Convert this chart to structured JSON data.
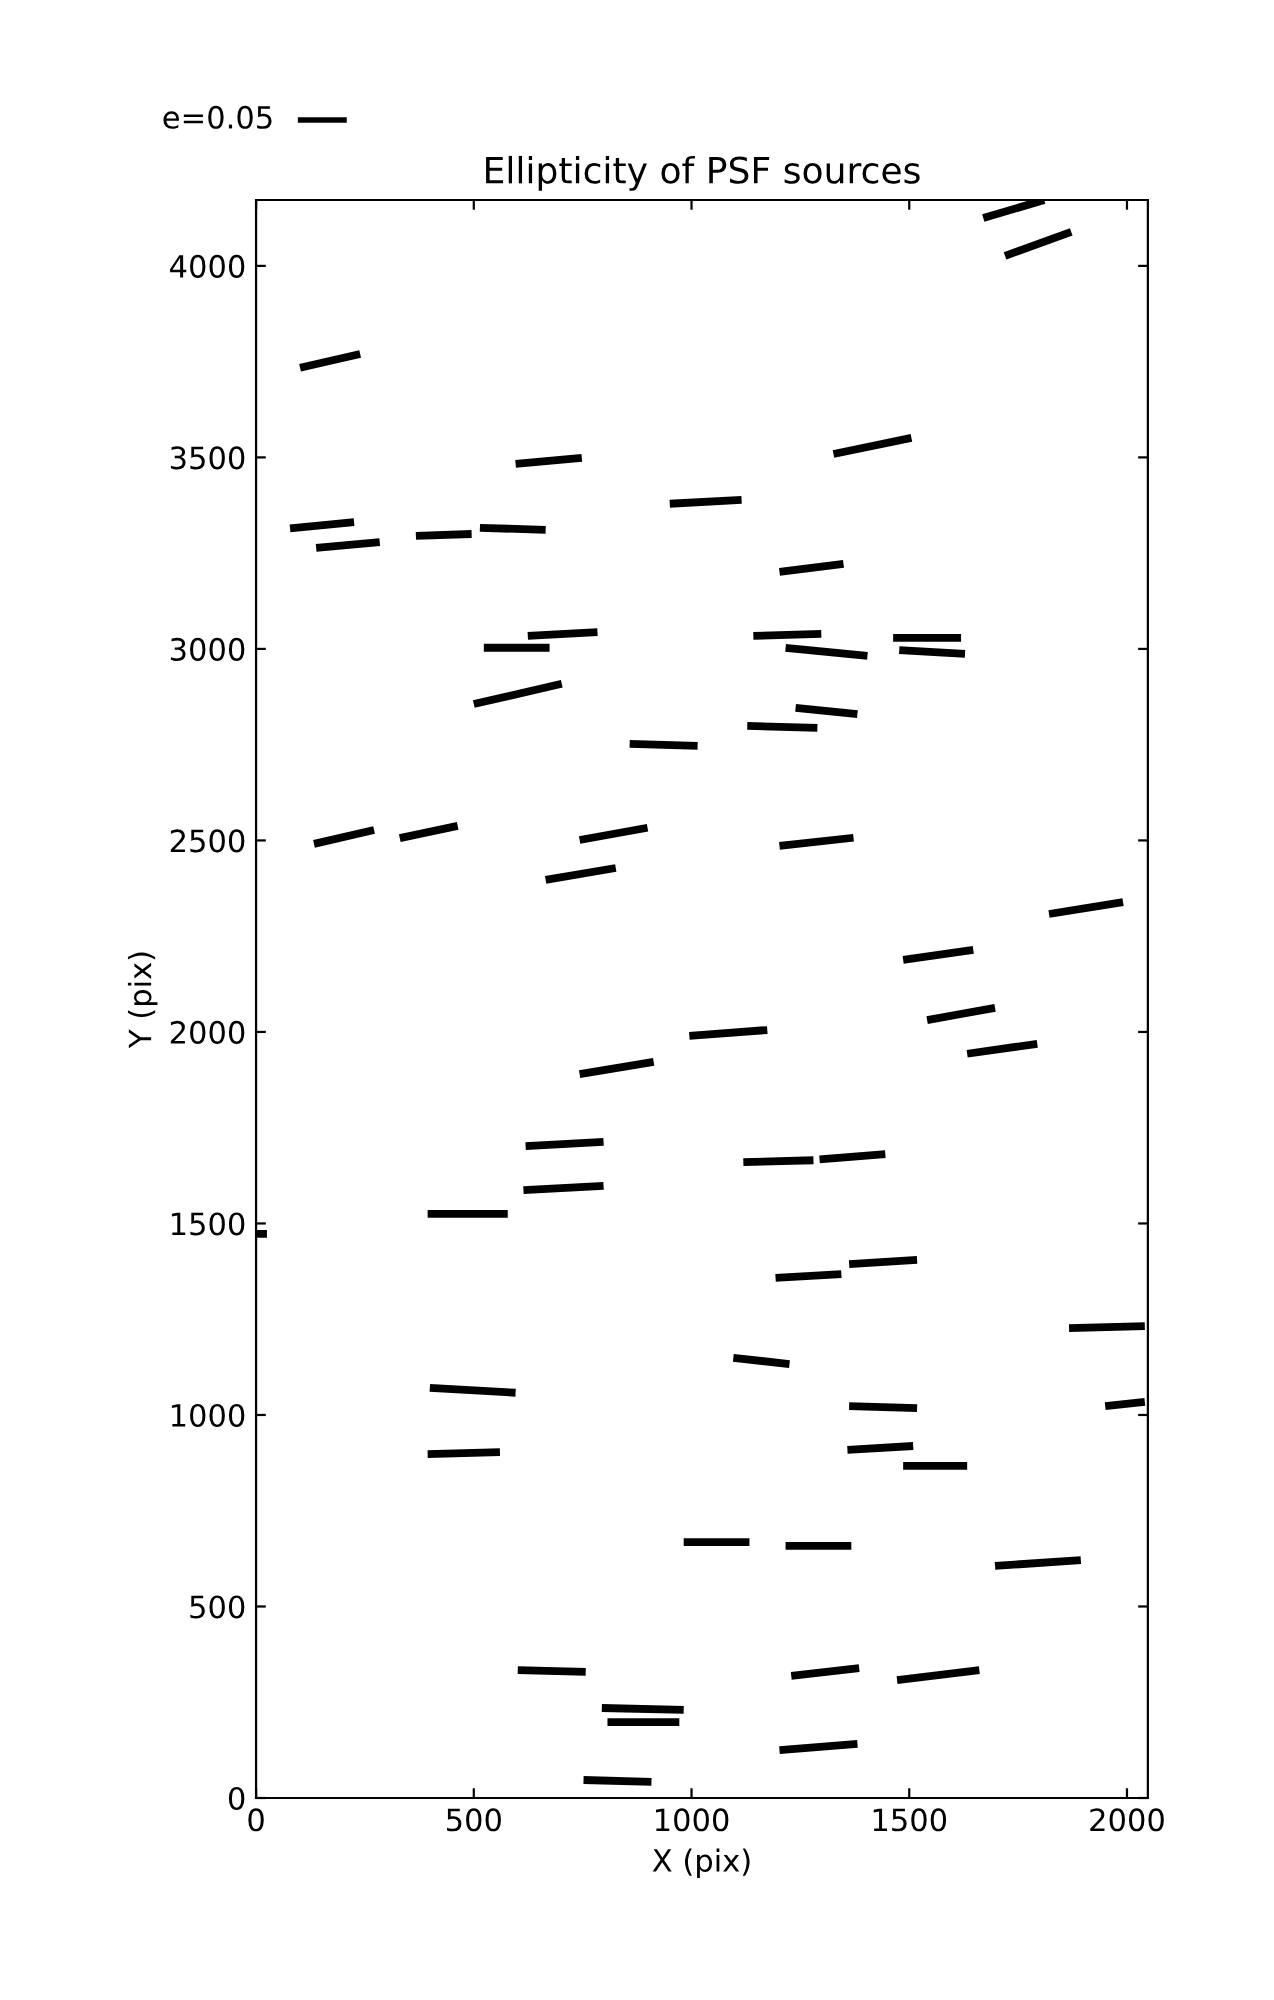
{
  "chart_data": {
    "type": "line",
    "title": "Ellipticity of PSF sources",
    "xlabel": "X (pix)",
    "ylabel": "Y (pix)",
    "annotations": [
      "e=0.05"
    ],
    "xlim": [
      0,
      2048
    ],
    "ylim": [
      0,
      4172
    ],
    "xticks": [
      0,
      500,
      1000,
      1500,
      2000
    ],
    "yticks": [
      0,
      500,
      1000,
      1500,
      2000,
      2500,
      3000,
      3500,
      4000
    ],
    "grid": false,
    "marker": "none",
    "line_style": "solid",
    "series": [
      {
        "color": "#000000",
        "x": [
          101,
          239
        ],
        "values": [
          3734,
          3770
        ]
      },
      {
        "color": "#000000",
        "x": [
          78,
          225
        ],
        "values": [
          3315,
          3331
        ]
      },
      {
        "color": "#000000",
        "x": [
          138,
          284
        ],
        "values": [
          3264,
          3279
        ]
      },
      {
        "color": "#000000",
        "x": [
          367,
          495
        ],
        "values": [
          3295,
          3300
        ]
      },
      {
        "color": "#000000",
        "x": [
          514,
          665
        ],
        "values": [
          3316,
          3311
        ]
      },
      {
        "color": "#000000",
        "x": [
          596,
          748
        ],
        "values": [
          3483,
          3499
        ]
      },
      {
        "color": "#000000",
        "x": [
          523,
          674
        ],
        "values": [
          3003,
          3003
        ]
      },
      {
        "color": "#000000",
        "x": [
          624,
          784
        ],
        "values": [
          3034,
          3044
        ]
      },
      {
        "color": "#000000",
        "x": [
          500,
          702
        ],
        "values": [
          2856,
          2909
        ]
      },
      {
        "color": "#000000",
        "x": [
          858,
          1014
        ],
        "values": [
          2752,
          2747
        ]
      },
      {
        "color": "#000000",
        "x": [
          950,
          1115
        ],
        "values": [
          3379,
          3389
        ]
      },
      {
        "color": "#000000",
        "x": [
          1326,
          1505
        ],
        "values": [
          3509,
          3551
        ]
      },
      {
        "color": "#000000",
        "x": [
          1202,
          1349
        ],
        "values": [
          3201,
          3222
        ]
      },
      {
        "color": "#000000",
        "x": [
          1142,
          1298
        ],
        "values": [
          3034,
          3039
        ]
      },
      {
        "color": "#000000",
        "x": [
          1216,
          1404
        ],
        "values": [
          3003,
          2982
        ]
      },
      {
        "color": "#000000",
        "x": [
          1463,
          1619
        ],
        "values": [
          3029,
          3029
        ]
      },
      {
        "color": "#000000",
        "x": [
          1477,
          1628
        ],
        "values": [
          2997,
          2987
        ]
      },
      {
        "color": "#000000",
        "x": [
          1239,
          1381
        ],
        "values": [
          2846,
          2830
        ]
      },
      {
        "color": "#000000",
        "x": [
          1128,
          1289
        ],
        "values": [
          2799,
          2794
        ]
      },
      {
        "color": "#000000",
        "x": [
          1670,
          1810
        ],
        "values": [
          4125,
          4172
        ]
      },
      {
        "color": "#000000",
        "x": [
          1720,
          1872
        ],
        "values": [
          4026,
          4089
        ]
      },
      {
        "color": "#000000",
        "x": [
          0,
          25
        ],
        "values": [
          1473,
          1473
        ]
      },
      {
        "color": "#000000",
        "x": [
          133,
          271
        ],
        "values": [
          2491,
          2527
        ]
      },
      {
        "color": "#000000",
        "x": [
          330,
          463
        ],
        "values": [
          2506,
          2538
        ]
      },
      {
        "color": "#000000",
        "x": [
          665,
          826
        ],
        "values": [
          2397,
          2428
        ]
      },
      {
        "color": "#000000",
        "x": [
          743,
          899
        ],
        "values": [
          2501,
          2533
        ]
      },
      {
        "color": "#000000",
        "x": [
          1202,
          1372
        ],
        "values": [
          2486,
          2507
        ]
      },
      {
        "color": "#000000",
        "x": [
          1486,
          1647
        ],
        "values": [
          2188,
          2214
        ]
      },
      {
        "color": "#000000",
        "x": [
          1821,
          1991
        ],
        "values": [
          2308,
          2339
        ]
      },
      {
        "color": "#000000",
        "x": [
          1541,
          1697
        ],
        "values": [
          2031,
          2063
        ]
      },
      {
        "color": "#000000",
        "x": [
          1633,
          1794
        ],
        "values": [
          1943,
          1969
        ]
      },
      {
        "color": "#000000",
        "x": [
          995,
          1174
        ],
        "values": [
          1990,
          2005
        ]
      },
      {
        "color": "#000000",
        "x": [
          743,
          913
        ],
        "values": [
          1890,
          1922
        ]
      },
      {
        "color": "#000000",
        "x": [
          619,
          798
        ],
        "values": [
          1702,
          1713
        ]
      },
      {
        "color": "#000000",
        "x": [
          614,
          798
        ],
        "values": [
          1587,
          1598
        ]
      },
      {
        "color": "#000000",
        "x": [
          394,
          578
        ],
        "values": [
          1525,
          1525
        ]
      },
      {
        "color": "#000000",
        "x": [
          1119,
          1280
        ],
        "values": [
          1660,
          1665
        ]
      },
      {
        "color": "#000000",
        "x": [
          1294,
          1445
        ],
        "values": [
          1667,
          1681
        ]
      },
      {
        "color": "#000000",
        "x": [
          1193,
          1344
        ],
        "values": [
          1358,
          1368
        ]
      },
      {
        "color": "#000000",
        "x": [
          1362,
          1518
        ],
        "values": [
          1394,
          1405
        ]
      },
      {
        "color": "#000000",
        "x": [
          1867,
          2041
        ],
        "values": [
          1227,
          1232
        ]
      },
      {
        "color": "#000000",
        "x": [
          1950,
          2041
        ],
        "values": [
          1023,
          1034
        ]
      },
      {
        "color": "#000000",
        "x": [
          399,
          596
        ],
        "values": [
          1071,
          1058
        ]
      },
      {
        "color": "#000000",
        "x": [
          394,
          560
        ],
        "values": [
          898,
          903
        ]
      },
      {
        "color": "#000000",
        "x": [
          1096,
          1225
        ],
        "values": [
          1149,
          1133
        ]
      },
      {
        "color": "#000000",
        "x": [
          1362,
          1518
        ],
        "values": [
          1023,
          1018
        ]
      },
      {
        "color": "#000000",
        "x": [
          1358,
          1509
        ],
        "values": [
          909,
          919
        ]
      },
      {
        "color": "#000000",
        "x": [
          1486,
          1633
        ],
        "values": [
          867,
          867
        ]
      },
      {
        "color": "#000000",
        "x": [
          982,
          1133
        ],
        "values": [
          668,
          668
        ]
      },
      {
        "color": "#000000",
        "x": [
          1216,
          1367
        ],
        "values": [
          658,
          658
        ]
      },
      {
        "color": "#000000",
        "x": [
          1697,
          1894
        ],
        "values": [
          606,
          621
        ]
      },
      {
        "color": "#000000",
        "x": [
          601,
          757
        ],
        "values": [
          334,
          329
        ]
      },
      {
        "color": "#000000",
        "x": [
          794,
          982
        ],
        "values": [
          235,
          230
        ]
      },
      {
        "color": "#000000",
        "x": [
          807,
          972
        ],
        "values": [
          198,
          198
        ]
      },
      {
        "color": "#000000",
        "x": [
          752,
          908
        ],
        "values": [
          47,
          42
        ]
      },
      {
        "color": "#000000",
        "x": [
          1229,
          1385
        ],
        "values": [
          319,
          339
        ]
      },
      {
        "color": "#000000",
        "x": [
          1472,
          1661
        ],
        "values": [
          308,
          334
        ]
      },
      {
        "color": "#000000",
        "x": [
          1202,
          1381
        ],
        "values": [
          125,
          141
        ]
      }
    ]
  }
}
